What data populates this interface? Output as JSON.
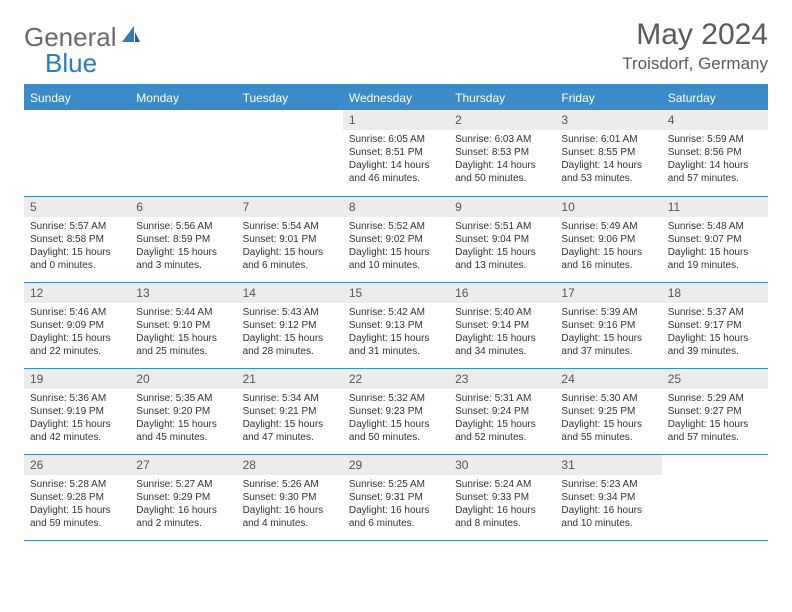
{
  "logo": {
    "part1": "General",
    "part2": "Blue"
  },
  "title": "May 2024",
  "location": "Troisdorf, Germany",
  "colors": {
    "header_bg": "#3b8bc9",
    "header_text": "#ffffff",
    "daynum_bg": "#ececec",
    "border": "#3b8bc9",
    "logo_gray": "#6a6a6a",
    "logo_blue": "#2a7bbf"
  },
  "weekdays": [
    "Sunday",
    "Monday",
    "Tuesday",
    "Wednesday",
    "Thursday",
    "Friday",
    "Saturday"
  ],
  "weeks": [
    [
      null,
      null,
      null,
      {
        "n": "1",
        "sr": "Sunrise: 6:05 AM",
        "ss": "Sunset: 8:51 PM",
        "d1": "Daylight: 14 hours",
        "d2": "and 46 minutes."
      },
      {
        "n": "2",
        "sr": "Sunrise: 6:03 AM",
        "ss": "Sunset: 8:53 PM",
        "d1": "Daylight: 14 hours",
        "d2": "and 50 minutes."
      },
      {
        "n": "3",
        "sr": "Sunrise: 6:01 AM",
        "ss": "Sunset: 8:55 PM",
        "d1": "Daylight: 14 hours",
        "d2": "and 53 minutes."
      },
      {
        "n": "4",
        "sr": "Sunrise: 5:59 AM",
        "ss": "Sunset: 8:56 PM",
        "d1": "Daylight: 14 hours",
        "d2": "and 57 minutes."
      }
    ],
    [
      {
        "n": "5",
        "sr": "Sunrise: 5:57 AM",
        "ss": "Sunset: 8:58 PM",
        "d1": "Daylight: 15 hours",
        "d2": "and 0 minutes."
      },
      {
        "n": "6",
        "sr": "Sunrise: 5:56 AM",
        "ss": "Sunset: 8:59 PM",
        "d1": "Daylight: 15 hours",
        "d2": "and 3 minutes."
      },
      {
        "n": "7",
        "sr": "Sunrise: 5:54 AM",
        "ss": "Sunset: 9:01 PM",
        "d1": "Daylight: 15 hours",
        "d2": "and 6 minutes."
      },
      {
        "n": "8",
        "sr": "Sunrise: 5:52 AM",
        "ss": "Sunset: 9:02 PM",
        "d1": "Daylight: 15 hours",
        "d2": "and 10 minutes."
      },
      {
        "n": "9",
        "sr": "Sunrise: 5:51 AM",
        "ss": "Sunset: 9:04 PM",
        "d1": "Daylight: 15 hours",
        "d2": "and 13 minutes."
      },
      {
        "n": "10",
        "sr": "Sunrise: 5:49 AM",
        "ss": "Sunset: 9:06 PM",
        "d1": "Daylight: 15 hours",
        "d2": "and 16 minutes."
      },
      {
        "n": "11",
        "sr": "Sunrise: 5:48 AM",
        "ss": "Sunset: 9:07 PM",
        "d1": "Daylight: 15 hours",
        "d2": "and 19 minutes."
      }
    ],
    [
      {
        "n": "12",
        "sr": "Sunrise: 5:46 AM",
        "ss": "Sunset: 9:09 PM",
        "d1": "Daylight: 15 hours",
        "d2": "and 22 minutes."
      },
      {
        "n": "13",
        "sr": "Sunrise: 5:44 AM",
        "ss": "Sunset: 9:10 PM",
        "d1": "Daylight: 15 hours",
        "d2": "and 25 minutes."
      },
      {
        "n": "14",
        "sr": "Sunrise: 5:43 AM",
        "ss": "Sunset: 9:12 PM",
        "d1": "Daylight: 15 hours",
        "d2": "and 28 minutes."
      },
      {
        "n": "15",
        "sr": "Sunrise: 5:42 AM",
        "ss": "Sunset: 9:13 PM",
        "d1": "Daylight: 15 hours",
        "d2": "and 31 minutes."
      },
      {
        "n": "16",
        "sr": "Sunrise: 5:40 AM",
        "ss": "Sunset: 9:14 PM",
        "d1": "Daylight: 15 hours",
        "d2": "and 34 minutes."
      },
      {
        "n": "17",
        "sr": "Sunrise: 5:39 AM",
        "ss": "Sunset: 9:16 PM",
        "d1": "Daylight: 15 hours",
        "d2": "and 37 minutes."
      },
      {
        "n": "18",
        "sr": "Sunrise: 5:37 AM",
        "ss": "Sunset: 9:17 PM",
        "d1": "Daylight: 15 hours",
        "d2": "and 39 minutes."
      }
    ],
    [
      {
        "n": "19",
        "sr": "Sunrise: 5:36 AM",
        "ss": "Sunset: 9:19 PM",
        "d1": "Daylight: 15 hours",
        "d2": "and 42 minutes."
      },
      {
        "n": "20",
        "sr": "Sunrise: 5:35 AM",
        "ss": "Sunset: 9:20 PM",
        "d1": "Daylight: 15 hours",
        "d2": "and 45 minutes."
      },
      {
        "n": "21",
        "sr": "Sunrise: 5:34 AM",
        "ss": "Sunset: 9:21 PM",
        "d1": "Daylight: 15 hours",
        "d2": "and 47 minutes."
      },
      {
        "n": "22",
        "sr": "Sunrise: 5:32 AM",
        "ss": "Sunset: 9:23 PM",
        "d1": "Daylight: 15 hours",
        "d2": "and 50 minutes."
      },
      {
        "n": "23",
        "sr": "Sunrise: 5:31 AM",
        "ss": "Sunset: 9:24 PM",
        "d1": "Daylight: 15 hours",
        "d2": "and 52 minutes."
      },
      {
        "n": "24",
        "sr": "Sunrise: 5:30 AM",
        "ss": "Sunset: 9:25 PM",
        "d1": "Daylight: 15 hours",
        "d2": "and 55 minutes."
      },
      {
        "n": "25",
        "sr": "Sunrise: 5:29 AM",
        "ss": "Sunset: 9:27 PM",
        "d1": "Daylight: 15 hours",
        "d2": "and 57 minutes."
      }
    ],
    [
      {
        "n": "26",
        "sr": "Sunrise: 5:28 AM",
        "ss": "Sunset: 9:28 PM",
        "d1": "Daylight: 15 hours",
        "d2": "and 59 minutes."
      },
      {
        "n": "27",
        "sr": "Sunrise: 5:27 AM",
        "ss": "Sunset: 9:29 PM",
        "d1": "Daylight: 16 hours",
        "d2": "and 2 minutes."
      },
      {
        "n": "28",
        "sr": "Sunrise: 5:26 AM",
        "ss": "Sunset: 9:30 PM",
        "d1": "Daylight: 16 hours",
        "d2": "and 4 minutes."
      },
      {
        "n": "29",
        "sr": "Sunrise: 5:25 AM",
        "ss": "Sunset: 9:31 PM",
        "d1": "Daylight: 16 hours",
        "d2": "and 6 minutes."
      },
      {
        "n": "30",
        "sr": "Sunrise: 5:24 AM",
        "ss": "Sunset: 9:33 PM",
        "d1": "Daylight: 16 hours",
        "d2": "and 8 minutes."
      },
      {
        "n": "31",
        "sr": "Sunrise: 5:23 AM",
        "ss": "Sunset: 9:34 PM",
        "d1": "Daylight: 16 hours",
        "d2": "and 10 minutes."
      },
      null
    ]
  ]
}
